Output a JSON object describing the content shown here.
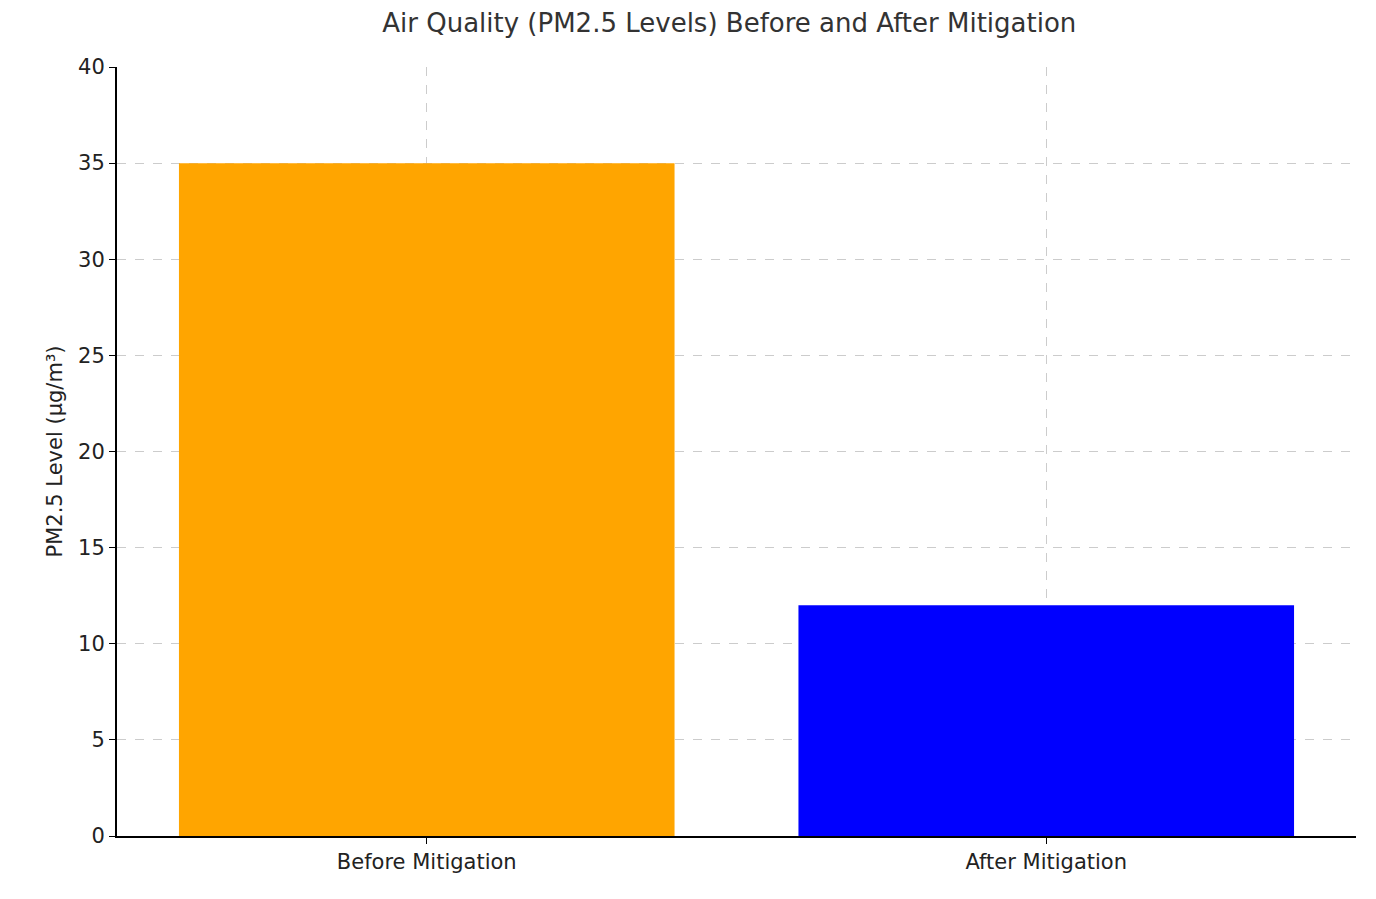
{
  "chart_data": {
    "type": "bar",
    "title": "Air Quality (PM2.5 Levels) Before and After Mitigation",
    "y_label": "PM2.5 Level (µg/m³)",
    "categories": [
      "Before Mitigation",
      "After Mitigation"
    ],
    "values": [
      35,
      12
    ],
    "colors": [
      "#ffa500",
      "#0000ff"
    ],
    "ylim": [
      0,
      40
    ],
    "yticks": [
      0,
      5,
      10,
      15,
      20,
      25,
      30,
      35,
      40
    ],
    "grid": true
  }
}
